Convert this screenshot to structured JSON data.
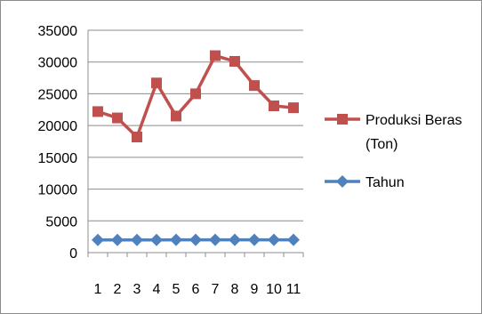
{
  "chart_data": {
    "type": "line",
    "categories": [
      "1",
      "2",
      "3",
      "4",
      "5",
      "6",
      "7",
      "8",
      "9",
      "10",
      "11"
    ],
    "series": [
      {
        "name": "Produksi Beras (Ton)",
        "name_lines": [
          "Produksi Beras",
          "(Ton)"
        ],
        "color": "#c0504d",
        "marker": "square",
        "values": [
          22200,
          21200,
          18200,
          26700,
          21500,
          25000,
          31000,
          30100,
          26300,
          23100,
          22800
        ]
      },
      {
        "name": "Tahun",
        "name_lines": [
          "Tahun"
        ],
        "color": "#4f81bd",
        "marker": "diamond",
        "values": [
          2000,
          2001,
          2002,
          2003,
          2004,
          2005,
          2006,
          2007,
          2008,
          2009,
          2010
        ]
      }
    ],
    "yticks": [
      "0",
      "5000",
      "10000",
      "15000",
      "20000",
      "25000",
      "30000",
      "35000"
    ],
    "ylim": [
      0,
      35000
    ],
    "grid": true,
    "legend_position": "right",
    "title": "",
    "xlabel": "",
    "ylabel": ""
  }
}
